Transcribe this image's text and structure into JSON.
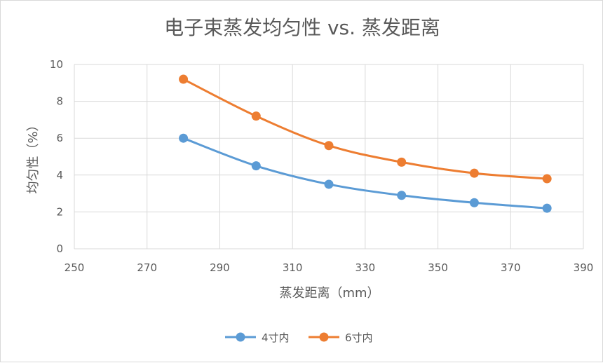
{
  "chart_data": {
    "type": "scatter",
    "title": "电子束蒸发均匀性 vs. 蒸发距离",
    "xlabel": "蒸发距离（mm）",
    "ylabel": "均匀性（%）",
    "xlim": [
      250,
      390
    ],
    "ylim": [
      0,
      10
    ],
    "xticks": [
      "250",
      "270",
      "290",
      "310",
      "330",
      "350",
      "370",
      "390"
    ],
    "yticks": [
      "0",
      "2",
      "4",
      "6",
      "8",
      "10"
    ],
    "grid": true,
    "legend_position": "bottom",
    "smooth": true,
    "series": [
      {
        "name": "4寸内",
        "color": "#5B9BD5",
        "x": [
          280,
          300,
          320,
          340,
          360,
          380
        ],
        "y": [
          6.0,
          4.5,
          3.5,
          2.9,
          2.5,
          2.2
        ]
      },
      {
        "name": "6寸内",
        "color": "#ED7D31",
        "x": [
          280,
          300,
          320,
          340,
          360,
          380
        ],
        "y": [
          9.2,
          7.2,
          5.6,
          4.7,
          4.1,
          3.8
        ]
      }
    ]
  }
}
